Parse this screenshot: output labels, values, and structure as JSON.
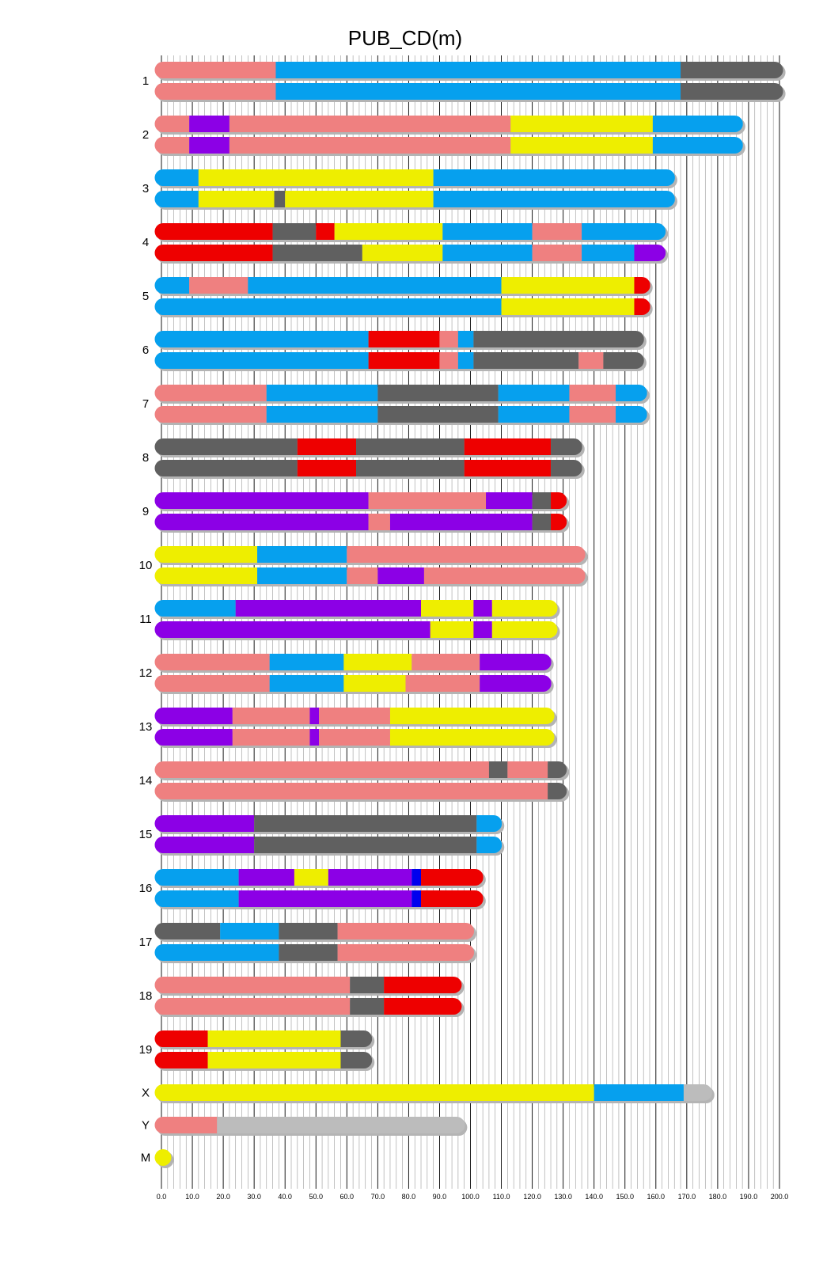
{
  "chart_data": {
    "type": "karyotype",
    "title": "PUB_CD(m)",
    "xlim": [
      0,
      200
    ],
    "x_ticks": [
      "0.0",
      "10.0",
      "20.0",
      "30.0",
      "40.0",
      "50.0",
      "60.0",
      "70.0",
      "80.0",
      "90.0",
      "100.0",
      "110.0",
      "120.0",
      "130.0",
      "140.0",
      "150.0",
      "160.0",
      "170.0",
      "180.0",
      "190.0",
      "200.0"
    ],
    "colors": {
      "S": "#06a0ee",
      "P": "#ef8080",
      "D": "#606060",
      "Y": "#eeee00",
      "R": "#ee0000",
      "V": "#8c00e6",
      "B": "#0000ee",
      "L": "#bcbcbc"
    },
    "chromosomes": [
      {
        "name": "1",
        "haplotypes": [
          [
            [
              0,
              37,
              "P"
            ],
            [
              37,
              168,
              "S"
            ],
            [
              168,
              199,
              "D"
            ]
          ],
          [
            [
              0,
              37,
              "P"
            ],
            [
              37,
              168,
              "S"
            ],
            [
              168,
              199,
              "D"
            ]
          ]
        ]
      },
      {
        "name": "2",
        "haplotypes": [
          [
            [
              0,
              9,
              "P"
            ],
            [
              9,
              22,
              "V"
            ],
            [
              22,
              113,
              "P"
            ],
            [
              113,
              159,
              "Y"
            ],
            [
              159,
              186,
              "S"
            ]
          ],
          [
            [
              0,
              9,
              "P"
            ],
            [
              9,
              22,
              "V"
            ],
            [
              22,
              113,
              "P"
            ],
            [
              113,
              159,
              "Y"
            ],
            [
              159,
              186,
              "S"
            ]
          ]
        ]
      },
      {
        "name": "3",
        "haplotypes": [
          [
            [
              0,
              12,
              "S"
            ],
            [
              12,
              88,
              "Y"
            ],
            [
              88,
              164,
              "S"
            ]
          ],
          [
            [
              0,
              12,
              "S"
            ],
            [
              12,
              36.5,
              "Y"
            ],
            [
              36.5,
              40,
              "D"
            ],
            [
              40,
              88,
              "Y"
            ],
            [
              88,
              164,
              "S"
            ]
          ]
        ]
      },
      {
        "name": "4",
        "haplotypes": [
          [
            [
              0,
              36,
              "R"
            ],
            [
              36,
              50,
              "D"
            ],
            [
              50,
              56,
              "R"
            ],
            [
              56,
              91,
              "Y"
            ],
            [
              91,
              120,
              "S"
            ],
            [
              120,
              136,
              "P"
            ],
            [
              136,
              161,
              "S"
            ]
          ],
          [
            [
              0,
              36,
              "R"
            ],
            [
              36,
              65,
              "D"
            ],
            [
              65,
              91,
              "Y"
            ],
            [
              91,
              120,
              "S"
            ],
            [
              120,
              136,
              "P"
            ],
            [
              136,
              153,
              "S"
            ],
            [
              153,
              161,
              "V"
            ]
          ]
        ]
      },
      {
        "name": "5",
        "haplotypes": [
          [
            [
              0,
              9,
              "S"
            ],
            [
              9,
              28,
              "P"
            ],
            [
              28,
              110,
              "S"
            ],
            [
              110,
              153,
              "Y"
            ],
            [
              153,
              156,
              "R"
            ]
          ],
          [
            [
              0,
              110,
              "S"
            ],
            [
              110,
              153,
              "Y"
            ],
            [
              153,
              156,
              "R"
            ]
          ]
        ]
      },
      {
        "name": "6",
        "haplotypes": [
          [
            [
              0,
              67,
              "S"
            ],
            [
              67,
              90,
              "R"
            ],
            [
              90,
              96,
              "P"
            ],
            [
              96,
              101,
              "S"
            ],
            [
              101,
              154,
              "D"
            ]
          ],
          [
            [
              0,
              67,
              "S"
            ],
            [
              67,
              90,
              "R"
            ],
            [
              90,
              96,
              "P"
            ],
            [
              96,
              101,
              "S"
            ],
            [
              101,
              135,
              "D"
            ],
            [
              135,
              143,
              "P"
            ],
            [
              143,
              154,
              "D"
            ]
          ]
        ]
      },
      {
        "name": "7",
        "haplotypes": [
          [
            [
              0,
              34,
              "P"
            ],
            [
              34,
              70,
              "S"
            ],
            [
              70,
              109,
              "D"
            ],
            [
              109,
              132,
              "S"
            ],
            [
              132,
              147,
              "P"
            ],
            [
              147,
              155,
              "S"
            ]
          ],
          [
            [
              0,
              34,
              "P"
            ],
            [
              34,
              70,
              "S"
            ],
            [
              70,
              109,
              "D"
            ],
            [
              109,
              132,
              "S"
            ],
            [
              132,
              147,
              "P"
            ],
            [
              147,
              155,
              "S"
            ]
          ]
        ]
      },
      {
        "name": "8",
        "haplotypes": [
          [
            [
              0,
              44,
              "D"
            ],
            [
              44,
              63,
              "R"
            ],
            [
              63,
              98,
              "D"
            ],
            [
              98,
              126,
              "R"
            ],
            [
              126,
              134,
              "D"
            ]
          ],
          [
            [
              0,
              44,
              "D"
            ],
            [
              44,
              63,
              "R"
            ],
            [
              63,
              98,
              "D"
            ],
            [
              98,
              126,
              "R"
            ],
            [
              126,
              134,
              "D"
            ]
          ]
        ]
      },
      {
        "name": "9",
        "haplotypes": [
          [
            [
              0,
              67,
              "V"
            ],
            [
              67,
              105,
              "P"
            ],
            [
              105,
              120,
              "V"
            ],
            [
              120,
              126,
              "D"
            ],
            [
              126,
              129,
              "R"
            ]
          ],
          [
            [
              0,
              67,
              "V"
            ],
            [
              67,
              74,
              "P"
            ],
            [
              74,
              120,
              "V"
            ],
            [
              120,
              126,
              "D"
            ],
            [
              126,
              129,
              "R"
            ]
          ]
        ]
      },
      {
        "name": "10",
        "haplotypes": [
          [
            [
              0,
              31,
              "Y"
            ],
            [
              31,
              60,
              "S"
            ],
            [
              60,
              135,
              "P"
            ]
          ],
          [
            [
              0,
              31,
              "Y"
            ],
            [
              31,
              60,
              "S"
            ],
            [
              60,
              70,
              "P"
            ],
            [
              70,
              85,
              "V"
            ],
            [
              85,
              135,
              "P"
            ]
          ]
        ]
      },
      {
        "name": "11",
        "haplotypes": [
          [
            [
              0,
              24,
              "S"
            ],
            [
              24,
              84,
              "V"
            ],
            [
              84,
              101,
              "Y"
            ],
            [
              101,
              107,
              "V"
            ],
            [
              107,
              126,
              "Y"
            ]
          ],
          [
            [
              0,
              87,
              "V"
            ],
            [
              87,
              101,
              "Y"
            ],
            [
              101,
              107,
              "V"
            ],
            [
              107,
              126,
              "Y"
            ]
          ]
        ]
      },
      {
        "name": "12",
        "haplotypes": [
          [
            [
              0,
              35,
              "P"
            ],
            [
              35,
              59,
              "S"
            ],
            [
              59,
              81,
              "Y"
            ],
            [
              81,
              103,
              "P"
            ],
            [
              103,
              124,
              "V"
            ]
          ],
          [
            [
              0,
              35,
              "P"
            ],
            [
              35,
              59,
              "S"
            ],
            [
              59,
              79,
              "Y"
            ],
            [
              79,
              103,
              "P"
            ],
            [
              103,
              124,
              "V"
            ]
          ]
        ]
      },
      {
        "name": "13",
        "haplotypes": [
          [
            [
              0,
              23,
              "V"
            ],
            [
              23,
              48,
              "P"
            ],
            [
              48,
              51,
              "V"
            ],
            [
              51,
              74,
              "P"
            ],
            [
              74,
              125,
              "Y"
            ]
          ],
          [
            [
              0,
              23,
              "V"
            ],
            [
              23,
              48,
              "P"
            ],
            [
              48,
              51,
              "V"
            ],
            [
              51,
              74,
              "P"
            ],
            [
              74,
              125,
              "Y"
            ]
          ]
        ]
      },
      {
        "name": "14",
        "haplotypes": [
          [
            [
              0,
              106,
              "P"
            ],
            [
              106,
              112,
              "D"
            ],
            [
              112,
              125,
              "P"
            ],
            [
              125,
              129,
              "D"
            ]
          ],
          [
            [
              0,
              125,
              "P"
            ],
            [
              125,
              129,
              "D"
            ]
          ]
        ]
      },
      {
        "name": "15",
        "haplotypes": [
          [
            [
              0,
              30,
              "V"
            ],
            [
              30,
              102,
              "D"
            ],
            [
              102,
              108,
              "S"
            ]
          ],
          [
            [
              0,
              30,
              "V"
            ],
            [
              30,
              102,
              "D"
            ],
            [
              102,
              108,
              "S"
            ]
          ]
        ]
      },
      {
        "name": "16",
        "haplotypes": [
          [
            [
              0,
              25,
              "S"
            ],
            [
              25,
              43,
              "V"
            ],
            [
              43,
              54,
              "Y"
            ],
            [
              54,
              81,
              "V"
            ],
            [
              81,
              84,
              "B"
            ],
            [
              84,
              102,
              "R"
            ]
          ],
          [
            [
              0,
              25,
              "S"
            ],
            [
              25,
              81,
              "V"
            ],
            [
              81,
              84,
              "B"
            ],
            [
              84,
              102,
              "R"
            ]
          ]
        ]
      },
      {
        "name": "17",
        "haplotypes": [
          [
            [
              0,
              19,
              "D"
            ],
            [
              19,
              38,
              "S"
            ],
            [
              38,
              57,
              "D"
            ],
            [
              57,
              99,
              "P"
            ]
          ],
          [
            [
              0,
              38,
              "S"
            ],
            [
              38,
              57,
              "D"
            ],
            [
              57,
              99,
              "P"
            ]
          ]
        ]
      },
      {
        "name": "18",
        "haplotypes": [
          [
            [
              0,
              61,
              "P"
            ],
            [
              61,
              72,
              "D"
            ],
            [
              72,
              95,
              "R"
            ]
          ],
          [
            [
              0,
              61,
              "P"
            ],
            [
              61,
              72,
              "D"
            ],
            [
              72,
              95,
              "R"
            ]
          ]
        ]
      },
      {
        "name": "19",
        "haplotypes": [
          [
            [
              0,
              15,
              "R"
            ],
            [
              15,
              58,
              "Y"
            ],
            [
              58,
              66,
              "D"
            ]
          ],
          [
            [
              0,
              15,
              "R"
            ],
            [
              15,
              58,
              "Y"
            ],
            [
              58,
              66,
              "D"
            ]
          ]
        ]
      },
      {
        "name": "X",
        "haplotypes": [
          [
            [
              0,
              140,
              "Y"
            ],
            [
              140,
              169,
              "S"
            ],
            [
              169,
              176,
              "L"
            ]
          ]
        ]
      },
      {
        "name": "Y",
        "haplotypes": [
          [
            [
              0,
              18,
              "P"
            ],
            [
              18,
              96,
              "L"
            ]
          ]
        ]
      },
      {
        "name": "M",
        "haplotypes": [
          [
            [
              0,
              0.3,
              "Y"
            ]
          ]
        ]
      }
    ]
  }
}
